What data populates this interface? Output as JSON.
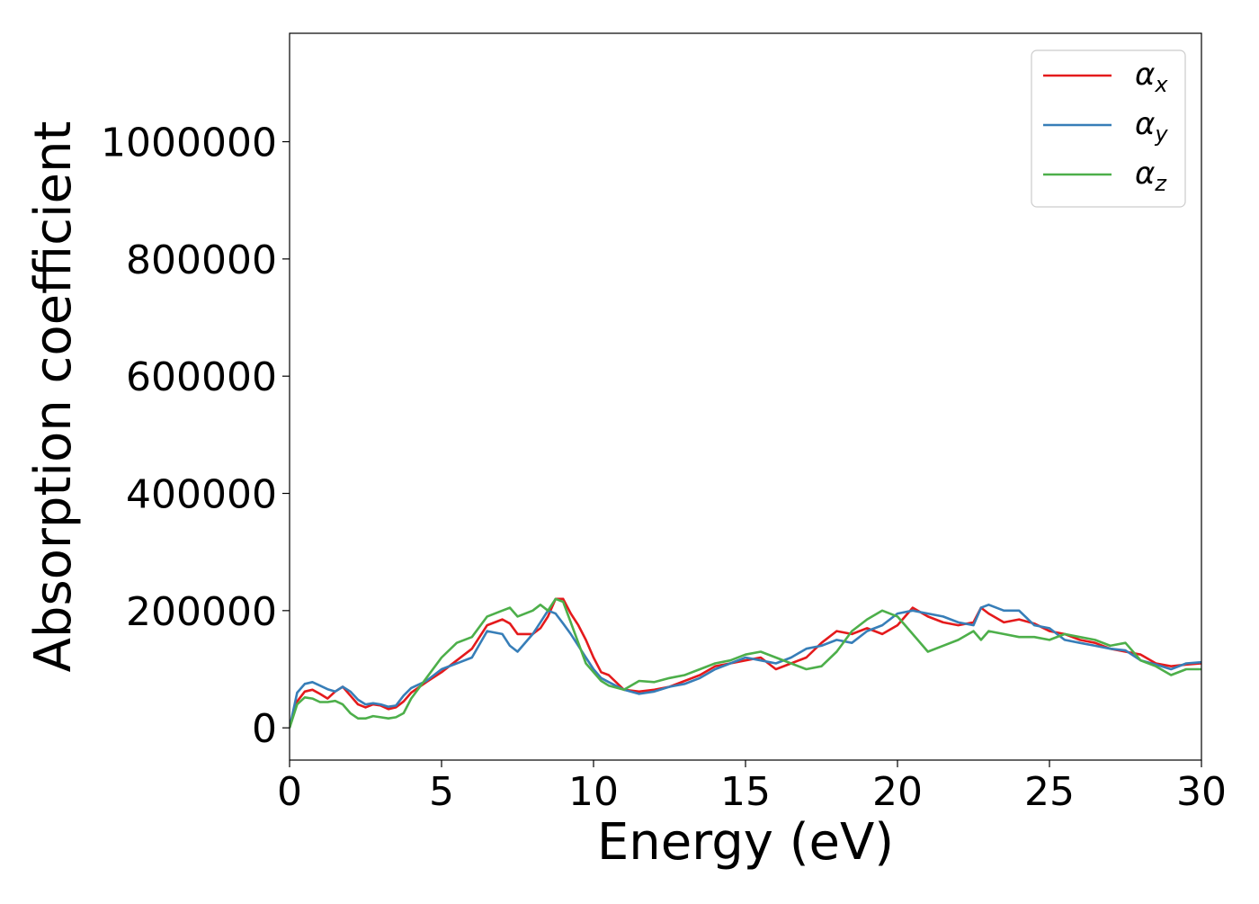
{
  "chart_data": {
    "type": "line",
    "title": "",
    "xlabel": "Energy (eV)",
    "ylabel": "Absorption coefficient",
    "xlim": [
      0,
      30
    ],
    "ylim": [
      -55000,
      1185000
    ],
    "xticks": [
      0,
      5,
      10,
      15,
      20,
      25,
      30
    ],
    "xtick_labels": [
      "0",
      "5",
      "10",
      "15",
      "20",
      "25",
      "30"
    ],
    "yticks": [
      0,
      200000,
      400000,
      600000,
      800000,
      1000000
    ],
    "ytick_labels": [
      "0",
      "200000",
      "400000",
      "600000",
      "800000",
      "1000000"
    ],
    "grid": false,
    "legend_position": "top-right",
    "series": [
      {
        "name": "α_x",
        "symbol": "α",
        "subscript": "x",
        "color": "#e41a1c",
        "x": [
          0,
          0.25,
          0.5,
          0.75,
          1,
          1.25,
          1.5,
          1.75,
          2,
          2.25,
          2.5,
          2.75,
          3,
          3.25,
          3.5,
          3.75,
          4,
          4.5,
          5,
          5.5,
          6,
          6.5,
          7,
          7.25,
          7.5,
          8,
          8.25,
          8.5,
          8.75,
          9,
          9.25,
          9.5,
          9.75,
          10,
          10.25,
          10.5,
          11,
          11.5,
          12,
          12.5,
          13,
          13.5,
          14,
          14.5,
          15,
          15.5,
          16,
          16.5,
          17,
          17.5,
          18,
          18.5,
          19,
          19.5,
          20,
          20.5,
          21,
          21.5,
          22,
          22.5,
          22.75,
          23,
          23.5,
          24,
          24.5,
          25,
          25.5,
          26,
          26.5,
          27,
          27.5,
          28,
          28.5,
          29,
          29.5,
          30
        ],
        "y": [
          0,
          45000,
          62000,
          65000,
          58000,
          50000,
          62000,
          70000,
          55000,
          40000,
          35000,
          40000,
          38000,
          32000,
          35000,
          45000,
          60000,
          78000,
          95000,
          115000,
          135000,
          175000,
          185000,
          178000,
          160000,
          160000,
          170000,
          190000,
          220000,
          220000,
          195000,
          175000,
          150000,
          120000,
          95000,
          90000,
          65000,
          62000,
          65000,
          70000,
          80000,
          90000,
          105000,
          110000,
          115000,
          120000,
          100000,
          110000,
          120000,
          145000,
          165000,
          160000,
          170000,
          160000,
          175000,
          205000,
          190000,
          180000,
          175000,
          180000,
          205000,
          195000,
          180000,
          185000,
          178000,
          165000,
          160000,
          150000,
          145000,
          135000,
          130000,
          125000,
          110000,
          105000,
          108000,
          110000
        ]
      },
      {
        "name": "α_y",
        "symbol": "α",
        "subscript": "y",
        "color": "#377eb8",
        "x": [
          0,
          0.25,
          0.5,
          0.75,
          1,
          1.25,
          1.5,
          1.75,
          2,
          2.25,
          2.5,
          2.75,
          3,
          3.25,
          3.5,
          3.75,
          4,
          4.5,
          5,
          5.5,
          6,
          6.5,
          7,
          7.25,
          7.5,
          8,
          8.25,
          8.5,
          8.75,
          9,
          9.25,
          9.5,
          9.75,
          10,
          10.25,
          10.5,
          11,
          11.5,
          12,
          12.5,
          13,
          13.5,
          14,
          14.5,
          15,
          15.5,
          16,
          16.5,
          17,
          17.5,
          18,
          18.5,
          19,
          19.5,
          20,
          20.5,
          21,
          21.5,
          22,
          22.5,
          22.75,
          23,
          23.5,
          24,
          24.5,
          25,
          25.5,
          26,
          26.5,
          27,
          27.5,
          28,
          28.5,
          29,
          29.5,
          30
        ],
        "y": [
          0,
          60000,
          75000,
          78000,
          72000,
          66000,
          62000,
          70000,
          62000,
          48000,
          40000,
          42000,
          40000,
          36000,
          38000,
          55000,
          68000,
          80000,
          100000,
          110000,
          120000,
          165000,
          160000,
          140000,
          130000,
          160000,
          180000,
          200000,
          195000,
          178000,
          160000,
          140000,
          120000,
          100000,
          85000,
          78000,
          65000,
          58000,
          62000,
          70000,
          75000,
          85000,
          100000,
          110000,
          120000,
          115000,
          110000,
          120000,
          135000,
          140000,
          150000,
          145000,
          165000,
          175000,
          195000,
          200000,
          195000,
          190000,
          180000,
          175000,
          205000,
          210000,
          200000,
          200000,
          175000,
          170000,
          150000,
          145000,
          140000,
          135000,
          132000,
          115000,
          108000,
          100000,
          110000,
          112000
        ]
      },
      {
        "name": "α_z",
        "symbol": "α",
        "subscript": "z",
        "color": "#4daf4a",
        "x": [
          0,
          0.25,
          0.5,
          0.75,
          1,
          1.25,
          1.5,
          1.75,
          2,
          2.25,
          2.5,
          2.75,
          3,
          3.25,
          3.5,
          3.75,
          4,
          4.5,
          5,
          5.5,
          6,
          6.5,
          7,
          7.25,
          7.5,
          8,
          8.25,
          8.5,
          8.75,
          9,
          9.25,
          9.5,
          9.75,
          10,
          10.25,
          10.5,
          11,
          11.5,
          12,
          12.5,
          13,
          13.5,
          14,
          14.5,
          15,
          15.5,
          16,
          16.5,
          17,
          17.5,
          18,
          18.5,
          19,
          19.5,
          20,
          20.5,
          21,
          21.5,
          22,
          22.5,
          22.75,
          23,
          23.5,
          24,
          24.5,
          25,
          25.5,
          26,
          26.5,
          27,
          27.5,
          28,
          28.5,
          29,
          29.5,
          30
        ],
        "y": [
          0,
          40000,
          52000,
          50000,
          44000,
          44000,
          46000,
          40000,
          25000,
          16000,
          16000,
          20000,
          18000,
          16000,
          18000,
          25000,
          50000,
          85000,
          120000,
          145000,
          155000,
          190000,
          200000,
          205000,
          190000,
          200000,
          210000,
          200000,
          220000,
          215000,
          180000,
          145000,
          110000,
          95000,
          80000,
          72000,
          65000,
          80000,
          78000,
          85000,
          90000,
          100000,
          110000,
          115000,
          125000,
          130000,
          120000,
          110000,
          100000,
          105000,
          130000,
          165000,
          185000,
          200000,
          190000,
          160000,
          130000,
          140000,
          150000,
          165000,
          150000,
          165000,
          160000,
          155000,
          155000,
          150000,
          160000,
          155000,
          150000,
          140000,
          145000,
          115000,
          105000,
          90000,
          100000,
          100000
        ]
      }
    ]
  }
}
